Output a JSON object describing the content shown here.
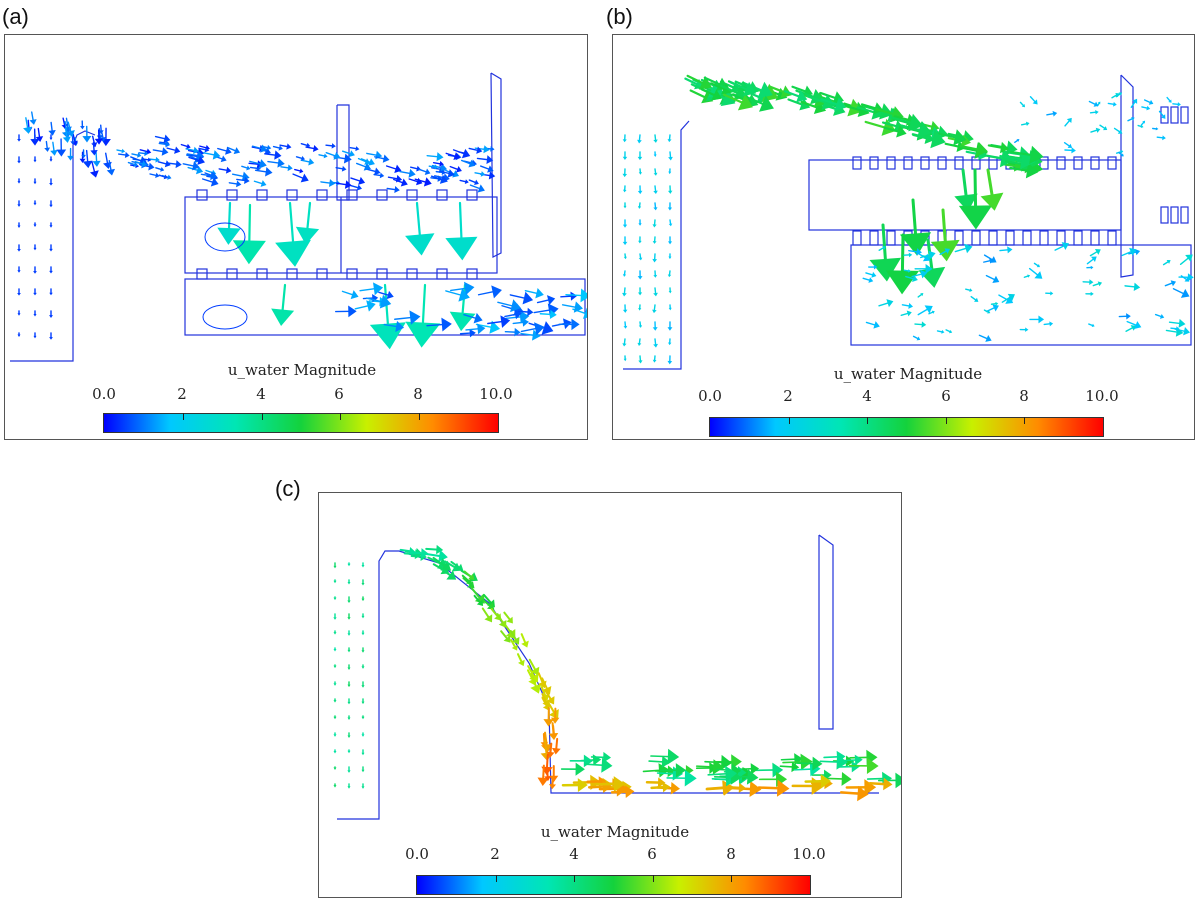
{
  "figure": {
    "panels": [
      {
        "label": "(a)",
        "colorbar": {
          "title": "u_water Magnitude",
          "ticks": [
            "0.0",
            "2",
            "4",
            "6",
            "8",
            "10.0"
          ]
        }
      },
      {
        "label": "(b)",
        "colorbar": {
          "title": "u_water Magnitude",
          "ticks": [
            "0.0",
            "2",
            "4",
            "6",
            "8",
            "10.0"
          ]
        }
      },
      {
        "label": "(c)",
        "colorbar": {
          "title": "u_water Magnitude",
          "ticks": [
            "0.0",
            "2",
            "4",
            "6",
            "8",
            "10.0"
          ]
        }
      }
    ],
    "colormap": [
      "#0000ff",
      "#00c8ff",
      "#00e6b4",
      "#14d23c",
      "#c8f000",
      "#ff8c00",
      "#ff0000"
    ],
    "outline_color": "#2233dd"
  }
}
